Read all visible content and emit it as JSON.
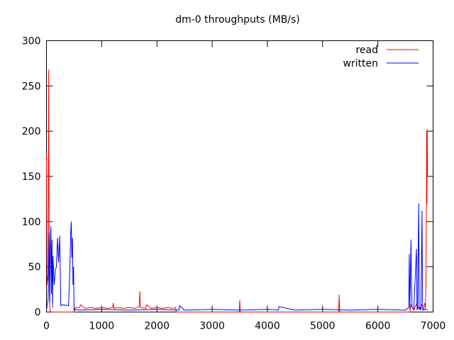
{
  "chart_data": {
    "type": "line",
    "title": "dm-0 throughputs (MB/s)",
    "xlabel": "",
    "ylabel": "",
    "xlim": [
      0,
      7000
    ],
    "ylim": [
      0,
      300
    ],
    "x_ticks": [
      0,
      1000,
      2000,
      3000,
      4000,
      5000,
      6000,
      7000
    ],
    "y_ticks": [
      0,
      50,
      100,
      150,
      200,
      250,
      300
    ],
    "grid": false,
    "legend_position": "top-right",
    "colors": {
      "read": "#ff0000",
      "written": "#0000ff"
    },
    "series": [
      {
        "name": "read",
        "x": [
          0,
          10,
          20,
          30,
          40,
          50,
          55,
          60,
          65,
          70,
          80,
          100,
          150,
          200,
          300,
          400,
          450,
          500,
          520,
          600,
          620,
          700,
          800,
          900,
          1000,
          1100,
          1200,
          1210,
          1220,
          1300,
          1400,
          1500,
          1600,
          1680,
          1690,
          1700,
          1710,
          1800,
          1810,
          1900,
          2000,
          2100,
          2200,
          2300,
          2340,
          2350,
          2500,
          3000,
          3490,
          3500,
          3510,
          3600,
          4000,
          5000,
          5290,
          5300,
          5310,
          5500,
          6000,
          6500,
          6580,
          6600,
          6650,
          6700,
          6750,
          6800,
          6820,
          6850,
          6860,
          6870,
          6875,
          6880,
          6885,
          6890,
          6895,
          6900
        ],
        "y": [
          175,
          30,
          40,
          35,
          268,
          60,
          20,
          5,
          2,
          1,
          0,
          0,
          0,
          0,
          0,
          0,
          0,
          0,
          5,
          5,
          8,
          4,
          5,
          4,
          5,
          4,
          5,
          10,
          4,
          5,
          4,
          5,
          4,
          6,
          23,
          5,
          5,
          4,
          8,
          4,
          5,
          4,
          5,
          4,
          5,
          0,
          0,
          0,
          0,
          13,
          0,
          0,
          0,
          0,
          0,
          19,
          0,
          0,
          0,
          0,
          0,
          8,
          2,
          9,
          3,
          8,
          2,
          10,
          3,
          30,
          80,
          130,
          200,
          120,
          202,
          150
        ]
      },
      {
        "name": "written",
        "x": [
          0,
          30,
          50,
          60,
          70,
          80,
          90,
          100,
          110,
          120,
          140,
          160,
          180,
          200,
          220,
          240,
          260,
          300,
          400,
          420,
          430,
          440,
          450,
          460,
          470,
          480,
          490,
          500,
          520,
          600,
          1000,
          1500,
          2000,
          2400,
          2410,
          2500,
          3000,
          3500,
          4000,
          4200,
          4210,
          4500,
          5000,
          5500,
          6000,
          6500,
          6560,
          6570,
          6580,
          6600,
          6610,
          6620,
          6650,
          6700,
          6710,
          6720,
          6740,
          6750,
          6760,
          6780,
          6800,
          6810,
          6820,
          6850,
          6900
        ],
        "y": [
          2,
          15,
          88,
          10,
          75,
          95,
          20,
          80,
          5,
          62,
          30,
          46,
          50,
          82,
          55,
          84,
          7,
          8,
          7,
          40,
          65,
          90,
          100,
          60,
          82,
          30,
          50,
          2,
          3,
          2,
          3,
          2,
          3,
          2,
          7,
          2,
          3,
          2,
          3,
          2,
          6,
          2,
          3,
          2,
          3,
          2,
          5,
          64,
          3,
          80,
          30,
          5,
          3,
          70,
          2,
          5,
          120,
          3,
          5,
          2,
          112,
          3,
          2,
          3,
          2
        ]
      }
    ]
  }
}
